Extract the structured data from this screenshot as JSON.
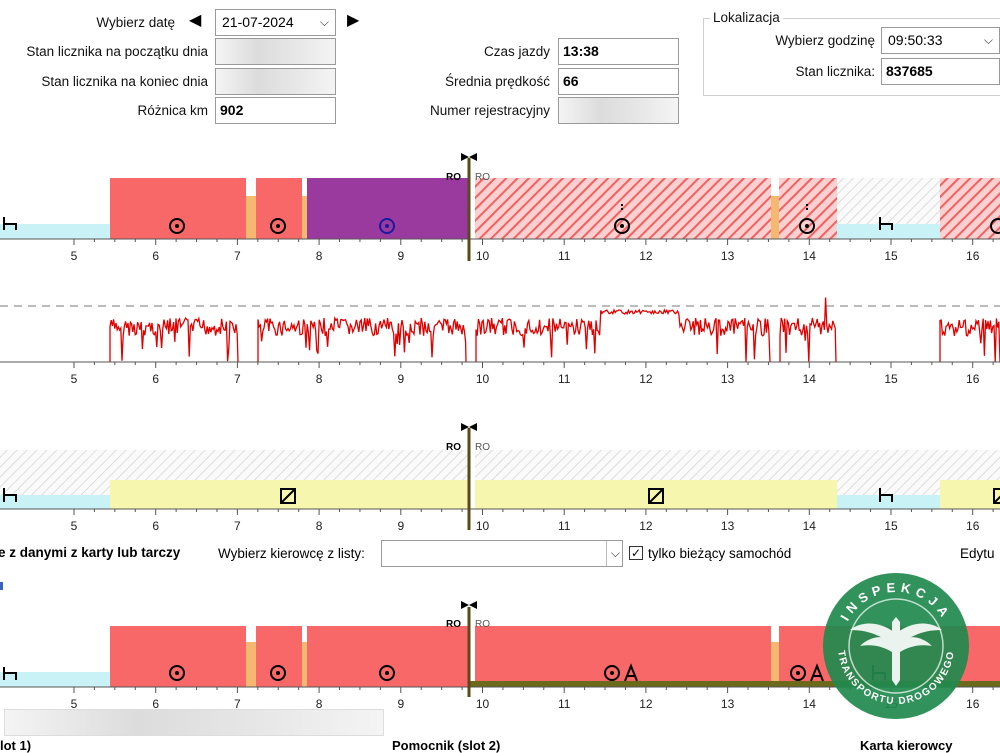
{
  "header": {
    "date_label": "Wybierz datę",
    "date_value": "21-07-2024",
    "prev_day_icon": "triangle-left-icon",
    "next_day_icon": "triangle-right-icon",
    "odometer_start_label": "Stan licznika na początku dnia",
    "odometer_end_label": "Stan licznika na koniec dnia",
    "km_diff_label": "Różnica km",
    "km_diff_value": "902",
    "drive_time_label": "Czas jazdy",
    "drive_time_value": "13:38",
    "avg_speed_label": "Średnia prędkość",
    "avg_speed_value": "66",
    "registration_label": "Numer rejestracyjny"
  },
  "location": {
    "title": "Lokalizacja",
    "time_label": "Wybierz godzinę",
    "time_value": "09:50:33",
    "odometer_label": "Stan licznika:",
    "odometer_value": "837685"
  },
  "timeline": {
    "hours": [
      "5",
      "6",
      "7",
      "8",
      "9",
      "10",
      "11",
      "12",
      "13",
      "14",
      "15",
      "16"
    ],
    "marker_left": "RO",
    "marker_right": "RO"
  },
  "driver_select": {
    "section_label": "e z danymi z karty lub tarczy",
    "choose_label": "Wybierz kierowcę z listy:",
    "only_current_label": "tylko bieżący samochód",
    "only_current_checked": true,
    "edit_label": "Edytu"
  },
  "footer": {
    "slot1_label": "lot 1)",
    "slot2_label": "Pomocnik (slot 2)",
    "card_label": "Karta kierowcy"
  },
  "watermark": {
    "top_text": "INSPEKCJA",
    "bottom_text": "TRANSPORTU DROGOWEGO"
  },
  "colors": {
    "driving": "#f96868",
    "work": "#9b3a9e",
    "transition": "#f5b870",
    "rest": "#c8f2f6",
    "availability": "#f6f6ae",
    "speed_line": "#e00000",
    "watermark": "#1f8a4d"
  }
}
